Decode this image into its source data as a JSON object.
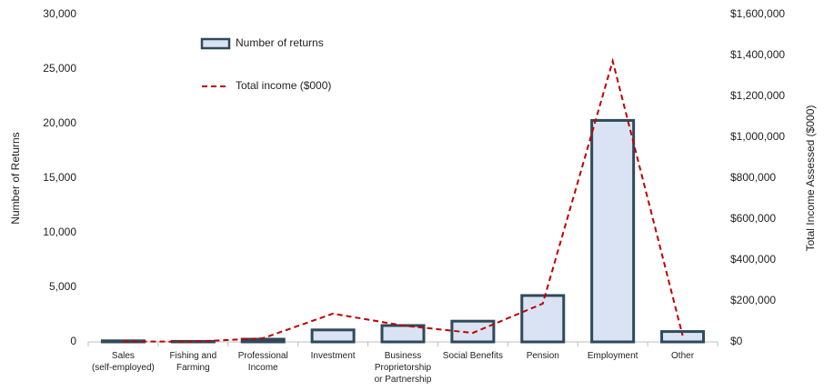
{
  "chart_data": {
    "type": "bar",
    "categories": [
      "Sales\n(self-employed)",
      "Fishing and\nFarming",
      "Professional\nIncome",
      "Investment",
      "Business\nProprietorship\nor Partnership",
      "Social Benefits",
      "Pension",
      "Employment",
      "Other"
    ],
    "series": [
      {
        "name": "Number of returns",
        "type": "bar",
        "color": "#dae3f3",
        "edge_color": "#2e4a5b",
        "values": [
          100,
          50,
          250,
          1100,
          1500,
          1900,
          4250,
          20300,
          950
        ]
      },
      {
        "name": "Total income ($000)",
        "type": "line",
        "axis": "y2",
        "color": "#c00000",
        "values": [
          2000,
          1000,
          18000,
          138000,
          80000,
          44000,
          187000,
          1373000,
          31000
        ]
      }
    ],
    "ylabel": "Number of Returns",
    "y2label": "Total Income Assessed ($000)",
    "ylim": [
      0,
      30000
    ],
    "yticks": [
      0,
      {
        "value": 5000,
        "label": "5,000"
      },
      {
        "value": 10000,
        "label": "10,000"
      },
      {
        "value": 15000,
        "label": "15,000"
      },
      {
        "value": 20000,
        "label": "20,000"
      },
      {
        "value": 25000,
        "label": "25,000"
      },
      {
        "value": 30000,
        "label": "30,000"
      }
    ],
    "y2lim": [
      0,
      1600000
    ],
    "y2ticks": [
      {
        "value": 0,
        "label": "$0"
      },
      {
        "value": 200000,
        "label": "$200,000"
      },
      {
        "value": 400000,
        "label": "$400,000"
      },
      {
        "value": 600000,
        "label": "$600,000"
      },
      {
        "value": 800000,
        "label": "$800,000"
      },
      {
        "value": 1000000,
        "label": "$1,000,000"
      },
      {
        "value": 1200000,
        "label": "$1,200,000"
      },
      {
        "value": 1400000,
        "label": "$1,400,000"
      },
      {
        "value": 1600000,
        "label": "$1,600,000"
      }
    ],
    "grid": false,
    "legend": "top-left"
  }
}
